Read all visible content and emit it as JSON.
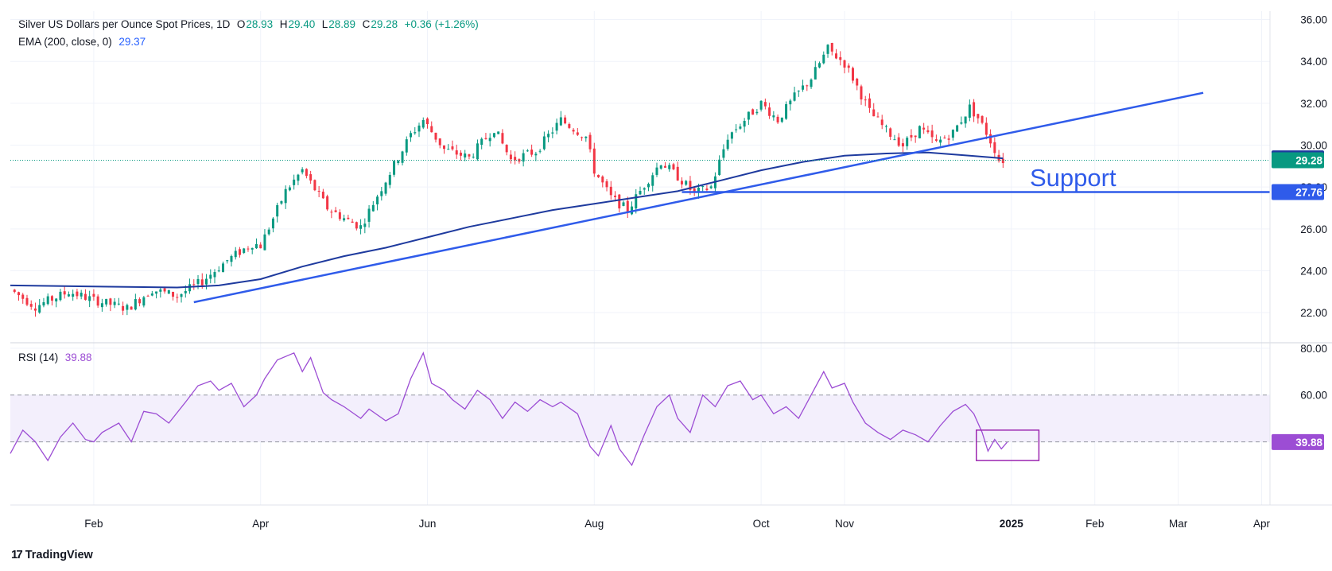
{
  "header": {
    "symbol": "Silver US Dollars per Ounce Spot Prices, 1D",
    "open_label": "O",
    "open": "28.93",
    "high_label": "H",
    "high": "29.40",
    "low_label": "L",
    "low": "28.89",
    "close_label": "C",
    "close": "29.28",
    "change": "+0.36 (+1.26%)",
    "ema_label": "EMA (200, close, 0)",
    "ema_value": "29.37",
    "rsi_label": "RSI (14)",
    "rsi_value": "39.88"
  },
  "branding": {
    "logo_text": "TradingView",
    "logo_icon": "tradingview-logo-icon"
  },
  "colors": {
    "up": "#089981",
    "down": "#f23645",
    "ema": "#1e3a9e",
    "trend": "#2f5bea",
    "rsi": "#9c4dd4",
    "rsi_band": "#f3effc",
    "grid": "#f0f3fa"
  },
  "chart_data": [
    {
      "type": "candlestick",
      "title": "Silver US Dollars per Ounce Spot Prices, 1D",
      "y_ticks": [
        "22.00",
        "24.00",
        "26.00",
        "28.00",
        "30.00",
        "32.00",
        "34.00",
        "36.00"
      ],
      "ylim": [
        20.6,
        36.4
      ],
      "x_ticks": [
        "Feb",
        "Apr",
        "Jun",
        "Aug",
        "Oct",
        "Nov",
        "2025",
        "Feb",
        "Mar",
        "Apr"
      ],
      "x_tick_months": [
        1.0,
        3.0,
        5.0,
        7.0,
        9.0,
        10.0,
        12.0,
        13.0,
        14.0,
        15.0
      ],
      "x_range_months": [
        0.0,
        15.1
      ],
      "data_end_month": 11.9,
      "price_path": [
        [
          0.0,
          23.1
        ],
        [
          0.3,
          22.3
        ],
        [
          0.7,
          23.0
        ],
        [
          1.0,
          22.6
        ],
        [
          1.4,
          22.2
        ],
        [
          1.7,
          23.1
        ],
        [
          2.0,
          22.8
        ],
        [
          2.3,
          23.5
        ],
        [
          2.6,
          24.5
        ],
        [
          2.9,
          25.3
        ],
        [
          3.0,
          25.2
        ],
        [
          3.3,
          27.8
        ],
        [
          3.5,
          28.8
        ],
        [
          3.8,
          27.0
        ],
        [
          4.0,
          26.5
        ],
        [
          4.2,
          26.1
        ],
        [
          4.4,
          27.6
        ],
        [
          4.8,
          30.5
        ],
        [
          4.95,
          31.2
        ],
        [
          5.2,
          29.8
        ],
        [
          5.5,
          29.4
        ],
        [
          5.8,
          30.8
        ],
        [
          6.0,
          29.3
        ],
        [
          6.3,
          29.7
        ],
        [
          6.6,
          31.2
        ],
        [
          6.9,
          30.4
        ],
        [
          7.0,
          28.8
        ],
        [
          7.2,
          27.5
        ],
        [
          7.4,
          26.9
        ],
        [
          7.6,
          28.1
        ],
        [
          7.8,
          29.2
        ],
        [
          8.0,
          28.5
        ],
        [
          8.2,
          27.7
        ],
        [
          8.4,
          28.0
        ],
        [
          8.6,
          30.4
        ],
        [
          8.9,
          31.6
        ],
        [
          9.0,
          32.0
        ],
        [
          9.2,
          31.2
        ],
        [
          9.4,
          32.3
        ],
        [
          9.6,
          33.2
        ],
        [
          9.8,
          34.6
        ],
        [
          10.0,
          33.9
        ],
        [
          10.1,
          33.2
        ],
        [
          10.3,
          31.6
        ],
        [
          10.5,
          30.7
        ],
        [
          10.7,
          30.0
        ],
        [
          10.9,
          30.8
        ],
        [
          11.1,
          30.1
        ],
        [
          11.3,
          30.6
        ],
        [
          11.5,
          31.8
        ],
        [
          11.6,
          31.3
        ],
        [
          11.7,
          30.6
        ],
        [
          11.8,
          29.8
        ],
        [
          11.85,
          29.3
        ],
        [
          11.9,
          29.28
        ]
      ],
      "ema_path": [
        [
          0.0,
          23.3
        ],
        [
          1.0,
          23.25
        ],
        [
          2.0,
          23.2
        ],
        [
          2.5,
          23.3
        ],
        [
          3.0,
          23.6
        ],
        [
          3.5,
          24.2
        ],
        [
          4.0,
          24.7
        ],
        [
          4.5,
          25.1
        ],
        [
          5.0,
          25.6
        ],
        [
          5.5,
          26.1
        ],
        [
          6.0,
          26.5
        ],
        [
          6.5,
          26.9
        ],
        [
          7.0,
          27.2
        ],
        [
          7.5,
          27.5
        ],
        [
          8.0,
          27.8
        ],
        [
          8.5,
          28.3
        ],
        [
          9.0,
          28.8
        ],
        [
          9.5,
          29.2
        ],
        [
          10.0,
          29.5
        ],
        [
          10.5,
          29.6
        ],
        [
          11.0,
          29.65
        ],
        [
          11.5,
          29.5
        ],
        [
          11.9,
          29.37
        ]
      ],
      "trendline": {
        "from": [
          2.2,
          22.5
        ],
        "to": [
          14.3,
          32.5
        ]
      },
      "support_line": {
        "from": [
          8.05,
          27.76
        ],
        "to": [
          15.1,
          27.76
        ],
        "label": "Support"
      },
      "price_labels": {
        "ema": "29.37",
        "last": "29.28",
        "support": "27.76",
        "hidden_tick": "28.00"
      }
    },
    {
      "type": "line",
      "title": "RSI (14)",
      "y_ticks": [
        "40.00",
        "60.00",
        "80.00"
      ],
      "ylim": [
        13,
        82
      ],
      "band": [
        40,
        60
      ],
      "last_value": "39.88",
      "rsi_path": [
        [
          0.0,
          35
        ],
        [
          0.15,
          45
        ],
        [
          0.3,
          40
        ],
        [
          0.45,
          32
        ],
        [
          0.6,
          42
        ],
        [
          0.75,
          48
        ],
        [
          0.9,
          41
        ],
        [
          1.0,
          40
        ],
        [
          1.1,
          44
        ],
        [
          1.3,
          48
        ],
        [
          1.45,
          40
        ],
        [
          1.6,
          53
        ],
        [
          1.75,
          52
        ],
        [
          1.9,
          48
        ],
        [
          2.1,
          57
        ],
        [
          2.25,
          64
        ],
        [
          2.4,
          66
        ],
        [
          2.5,
          62
        ],
        [
          2.65,
          65
        ],
        [
          2.8,
          55
        ],
        [
          2.95,
          60
        ],
        [
          3.05,
          67
        ],
        [
          3.2,
          75
        ],
        [
          3.4,
          78
        ],
        [
          3.5,
          70
        ],
        [
          3.6,
          76
        ],
        [
          3.75,
          61
        ],
        [
          3.85,
          58
        ],
        [
          4.0,
          55
        ],
        [
          4.2,
          50
        ],
        [
          4.3,
          54
        ],
        [
          4.5,
          49
        ],
        [
          4.65,
          52
        ],
        [
          4.8,
          67
        ],
        [
          4.95,
          78
        ],
        [
          5.05,
          65
        ],
        [
          5.2,
          62
        ],
        [
          5.3,
          58
        ],
        [
          5.45,
          54
        ],
        [
          5.6,
          62
        ],
        [
          5.75,
          58
        ],
        [
          5.9,
          50
        ],
        [
          6.05,
          57
        ],
        [
          6.2,
          53
        ],
        [
          6.35,
          58
        ],
        [
          6.5,
          55
        ],
        [
          6.6,
          57
        ],
        [
          6.8,
          52
        ],
        [
          6.95,
          38
        ],
        [
          7.05,
          34
        ],
        [
          7.2,
          47
        ],
        [
          7.3,
          37
        ],
        [
          7.45,
          30
        ],
        [
          7.6,
          43
        ],
        [
          7.75,
          55
        ],
        [
          7.9,
          60
        ],
        [
          8.0,
          50
        ],
        [
          8.15,
          44
        ],
        [
          8.3,
          60
        ],
        [
          8.45,
          55
        ],
        [
          8.6,
          64
        ],
        [
          8.75,
          66
        ],
        [
          8.9,
          58
        ],
        [
          9.0,
          60
        ],
        [
          9.15,
          52
        ],
        [
          9.3,
          55
        ],
        [
          9.45,
          50
        ],
        [
          9.6,
          60
        ],
        [
          9.75,
          70
        ],
        [
          9.85,
          63
        ],
        [
          10.0,
          65
        ],
        [
          10.1,
          57
        ],
        [
          10.25,
          48
        ],
        [
          10.4,
          44
        ],
        [
          10.55,
          41
        ],
        [
          10.7,
          45
        ],
        [
          10.85,
          43
        ],
        [
          11.0,
          40
        ],
        [
          11.15,
          47
        ],
        [
          11.3,
          53
        ],
        [
          11.45,
          56
        ],
        [
          11.55,
          52
        ],
        [
          11.65,
          44
        ],
        [
          11.72,
          36
        ],
        [
          11.8,
          41
        ],
        [
          11.88,
          37
        ],
        [
          11.95,
          39.88
        ]
      ],
      "highlight_box": {
        "months": [
          11.58,
          12.33
        ],
        "values": [
          32,
          45
        ]
      }
    }
  ]
}
